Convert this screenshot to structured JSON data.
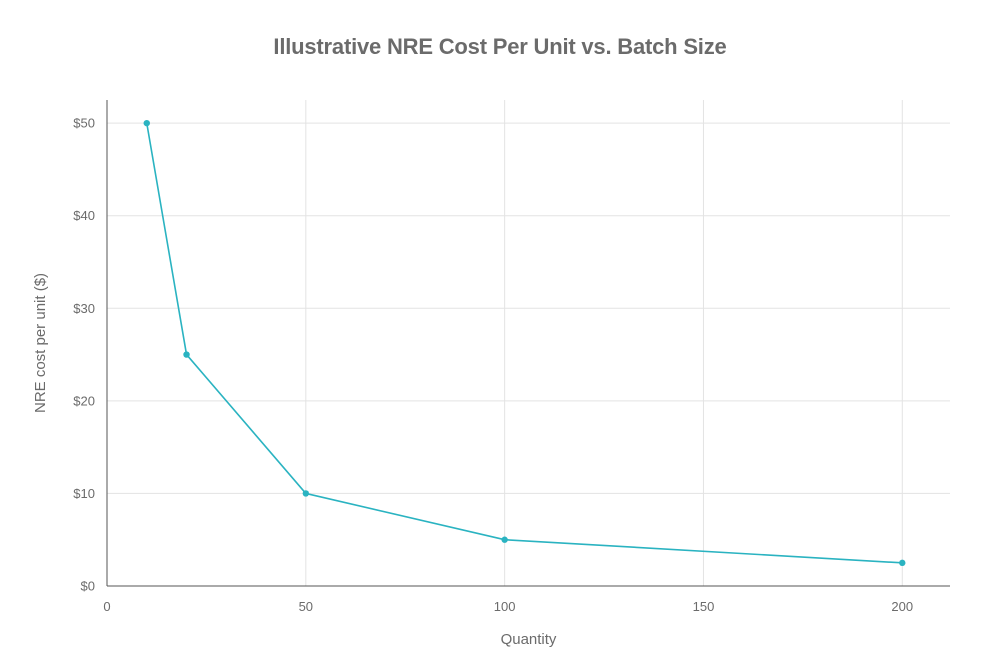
{
  "chart_data": {
    "type": "line",
    "title": "Illustrative NRE Cost Per Unit vs. Batch Size",
    "xlabel": "Quantity",
    "ylabel": "NRE cost per unit ($)",
    "xlim": [
      0,
      212
    ],
    "ylim": [
      0,
      52.5
    ],
    "x_ticks": [
      0,
      50,
      100,
      150,
      200
    ],
    "x_tick_labels": [
      "0",
      "50",
      "100",
      "150",
      "200"
    ],
    "y_ticks": [
      0,
      10,
      20,
      30,
      40,
      50
    ],
    "y_tick_labels": [
      "$0",
      "$10",
      "$20",
      "$30",
      "$40",
      "$50"
    ],
    "grid": true,
    "legend": "none",
    "series": [
      {
        "color": "#2ab3c1",
        "x": [
          10,
          20,
          50,
          100,
          200
        ],
        "y": [
          50,
          25,
          10,
          5,
          2.5
        ]
      }
    ]
  }
}
